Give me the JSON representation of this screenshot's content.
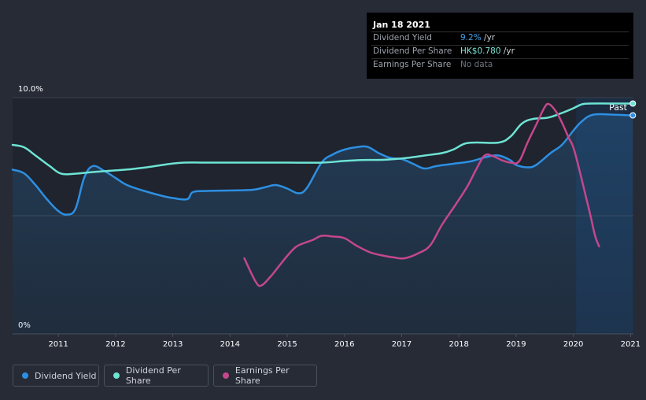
{
  "tooltip": {
    "date": "Jan 18 2021",
    "rows": [
      {
        "label": "Dividend Yield",
        "value": "9.2%",
        "unit": " /yr"
      },
      {
        "label": "Dividend Per Share",
        "value": "HK$0.780",
        "unit": " /yr"
      },
      {
        "label": "Earnings Per Share",
        "value": "No data",
        "unit": ""
      }
    ]
  },
  "legend": [
    {
      "label": "Dividend Yield",
      "color": "#2d8fe2"
    },
    {
      "label": "Dividend Per Share",
      "color": "#6ee3d4"
    },
    {
      "label": "Earnings Per Share",
      "color": "#c4478c"
    }
  ],
  "colors": {
    "background": "#262b36",
    "plot_bg": "#1f242e",
    "past_band": "#1c2c42",
    "grid": "#3b414d",
    "axis_text": "#ffffff"
  },
  "chart_data": {
    "type": "line",
    "past_label": "Past",
    "y_labels": {
      "top": "10.0%",
      "bottom": "0%"
    },
    "ylim": [
      0,
      10
    ],
    "xlim": [
      2010.2,
      2021.05
    ],
    "x_ticks": [
      2011,
      2012,
      2013,
      2014,
      2015,
      2016,
      2017,
      2018,
      2019,
      2020,
      2021
    ],
    "x_tick_labels": [
      "2011",
      "2012",
      "2013",
      "2014",
      "2015",
      "2016",
      "2017",
      "2018",
      "2019",
      "2020",
      "2021"
    ],
    "past_start": 2020.05,
    "series": [
      {
        "name": "Dividend Yield",
        "key": "yield",
        "color": "#2d8fe2",
        "filled": true,
        "end_marker": true,
        "points": [
          [
            2010.2,
            6.95
          ],
          [
            2010.4,
            6.8
          ],
          [
            2010.6,
            6.3
          ],
          [
            2010.8,
            5.7
          ],
          [
            2011.0,
            5.2
          ],
          [
            2011.15,
            5.05
          ],
          [
            2011.3,
            5.3
          ],
          [
            2011.45,
            6.6
          ],
          [
            2011.6,
            7.1
          ],
          [
            2011.8,
            6.9
          ],
          [
            2012.0,
            6.6
          ],
          [
            2012.2,
            6.3
          ],
          [
            2012.5,
            6.05
          ],
          [
            2012.8,
            5.85
          ],
          [
            2013.0,
            5.75
          ],
          [
            2013.25,
            5.7
          ],
          [
            2013.35,
            6.0
          ],
          [
            2013.6,
            6.05
          ],
          [
            2014.0,
            6.07
          ],
          [
            2014.4,
            6.1
          ],
          [
            2014.6,
            6.2
          ],
          [
            2014.8,
            6.3
          ],
          [
            2015.0,
            6.15
          ],
          [
            2015.2,
            5.95
          ],
          [
            2015.35,
            6.2
          ],
          [
            2015.6,
            7.25
          ],
          [
            2015.8,
            7.6
          ],
          [
            2016.0,
            7.8
          ],
          [
            2016.2,
            7.9
          ],
          [
            2016.4,
            7.92
          ],
          [
            2016.6,
            7.65
          ],
          [
            2016.8,
            7.45
          ],
          [
            2017.0,
            7.4
          ],
          [
            2017.2,
            7.2
          ],
          [
            2017.4,
            7.0
          ],
          [
            2017.6,
            7.1
          ],
          [
            2017.9,
            7.2
          ],
          [
            2018.2,
            7.3
          ],
          [
            2018.5,
            7.5
          ],
          [
            2018.7,
            7.55
          ],
          [
            2018.9,
            7.35
          ],
          [
            2019.0,
            7.15
          ],
          [
            2019.2,
            7.05
          ],
          [
            2019.35,
            7.15
          ],
          [
            2019.6,
            7.65
          ],
          [
            2019.8,
            8.0
          ],
          [
            2020.0,
            8.6
          ],
          [
            2020.15,
            9.0
          ],
          [
            2020.35,
            9.28
          ],
          [
            2020.7,
            9.28
          ],
          [
            2021.0,
            9.25
          ],
          [
            2021.04,
            9.25
          ]
        ]
      },
      {
        "name": "Dividend Per Share",
        "key": "dps",
        "color": "#6ee3d4",
        "filled": false,
        "end_marker": true,
        "points": [
          [
            2010.2,
            8.0
          ],
          [
            2010.4,
            7.9
          ],
          [
            2010.6,
            7.55
          ],
          [
            2010.85,
            7.1
          ],
          [
            2011.05,
            6.78
          ],
          [
            2011.3,
            6.78
          ],
          [
            2011.6,
            6.85
          ],
          [
            2012.0,
            6.92
          ],
          [
            2012.3,
            6.98
          ],
          [
            2012.6,
            7.07
          ],
          [
            2012.9,
            7.18
          ],
          [
            2013.2,
            7.25
          ],
          [
            2013.6,
            7.25
          ],
          [
            2014.5,
            7.25
          ],
          [
            2015.0,
            7.25
          ],
          [
            2015.6,
            7.25
          ],
          [
            2016.0,
            7.32
          ],
          [
            2016.3,
            7.36
          ],
          [
            2016.7,
            7.37
          ],
          [
            2017.1,
            7.45
          ],
          [
            2017.4,
            7.55
          ],
          [
            2017.7,
            7.65
          ],
          [
            2017.9,
            7.8
          ],
          [
            2018.1,
            8.05
          ],
          [
            2018.3,
            8.1
          ],
          [
            2018.7,
            8.1
          ],
          [
            2018.9,
            8.35
          ],
          [
            2019.1,
            8.9
          ],
          [
            2019.3,
            9.1
          ],
          [
            2019.55,
            9.15
          ],
          [
            2019.8,
            9.35
          ],
          [
            2020.0,
            9.55
          ],
          [
            2020.15,
            9.72
          ],
          [
            2020.3,
            9.75
          ],
          [
            2020.8,
            9.75
          ],
          [
            2021.04,
            9.75
          ]
        ]
      },
      {
        "name": "Earnings Per Share",
        "key": "eps",
        "color": "#c4478c",
        "filled": false,
        "end_marker": false,
        "points": [
          [
            2014.25,
            3.2
          ],
          [
            2014.45,
            2.2
          ],
          [
            2014.55,
            2.05
          ],
          [
            2014.7,
            2.4
          ],
          [
            2014.85,
            2.85
          ],
          [
            2015.0,
            3.3
          ],
          [
            2015.15,
            3.68
          ],
          [
            2015.3,
            3.85
          ],
          [
            2015.45,
            3.98
          ],
          [
            2015.6,
            4.15
          ],
          [
            2015.8,
            4.12
          ],
          [
            2016.0,
            4.05
          ],
          [
            2016.2,
            3.75
          ],
          [
            2016.45,
            3.45
          ],
          [
            2016.7,
            3.3
          ],
          [
            2016.85,
            3.24
          ],
          [
            2017.05,
            3.2
          ],
          [
            2017.3,
            3.42
          ],
          [
            2017.5,
            3.75
          ],
          [
            2017.7,
            4.6
          ],
          [
            2017.95,
            5.5
          ],
          [
            2018.15,
            6.25
          ],
          [
            2018.3,
            6.95
          ],
          [
            2018.45,
            7.55
          ],
          [
            2018.6,
            7.52
          ],
          [
            2018.75,
            7.35
          ],
          [
            2018.9,
            7.25
          ],
          [
            2019.05,
            7.3
          ],
          [
            2019.2,
            8.1
          ],
          [
            2019.35,
            8.85
          ],
          [
            2019.5,
            9.6
          ],
          [
            2019.58,
            9.72
          ],
          [
            2019.7,
            9.4
          ],
          [
            2019.8,
            8.95
          ],
          [
            2019.92,
            8.3
          ],
          [
            2020.0,
            7.9
          ],
          [
            2020.1,
            7.0
          ],
          [
            2020.2,
            6.0
          ],
          [
            2020.3,
            5.0
          ],
          [
            2020.38,
            4.15
          ],
          [
            2020.45,
            3.7
          ]
        ]
      }
    ]
  }
}
